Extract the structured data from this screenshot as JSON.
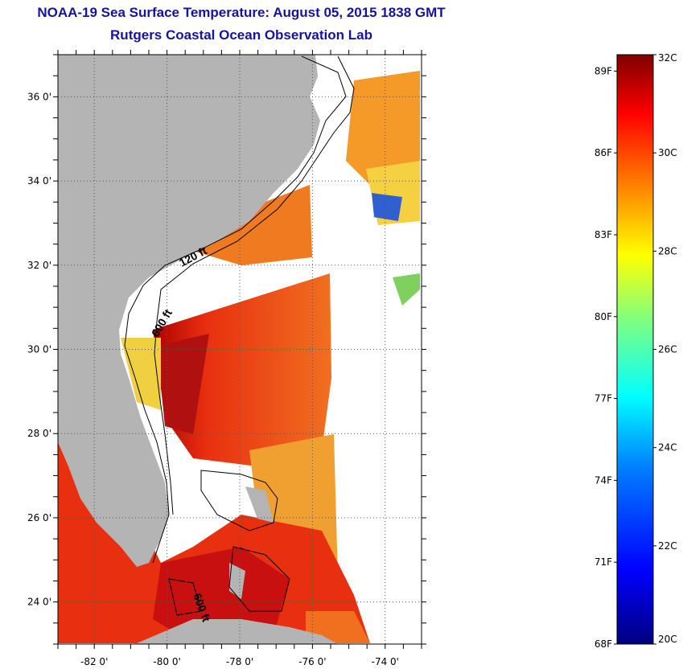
{
  "title": "NOAA-19 Sea Surface Temperature:  August 05, 2015 1838 GMT",
  "subtitle": "Rutgers Coastal Ocean Observation Lab",
  "map": {
    "lon_range": [
      -83,
      -73
    ],
    "lat_range": [
      23,
      37
    ],
    "x_ticks": [
      {
        "value": -82,
        "label": "-82 0'"
      },
      {
        "value": -80,
        "label": "-80 0'"
      },
      {
        "value": -78,
        "label": "-78 0'"
      },
      {
        "value": -76,
        "label": "-76 0'"
      },
      {
        "value": -74,
        "label": "-74 0'"
      }
    ],
    "y_ticks": [
      {
        "value": 36,
        "label": "36 0'"
      },
      {
        "value": 34,
        "label": "34 0'"
      },
      {
        "value": 32,
        "label": "32 0'"
      },
      {
        "value": 30,
        "label": "30 0'"
      },
      {
        "value": 28,
        "label": "28 0'"
      },
      {
        "value": 26,
        "label": "26 0'"
      },
      {
        "value": 24,
        "label": "24 0'"
      }
    ],
    "grid": "dotted",
    "contour_labels": [
      "120 ft",
      "600 ft",
      "600 ft"
    ],
    "land_color": "#b4b4b4"
  },
  "colorbar": {
    "min_c": 20,
    "max_c": 32,
    "fahrenheit_labels": [
      "89F",
      "86F",
      "83F",
      "80F",
      "77F",
      "74F",
      "71F",
      "68F"
    ],
    "celsius_labels": [
      "32C",
      "30C",
      "28C",
      "26C",
      "24C",
      "22C",
      "20C"
    ],
    "colors": [
      "#00007f",
      "#0000ff",
      "#007fff",
      "#00ffff",
      "#7fff7f",
      "#ffff00",
      "#ff7f00",
      "#ff0000",
      "#7f0000"
    ]
  }
}
